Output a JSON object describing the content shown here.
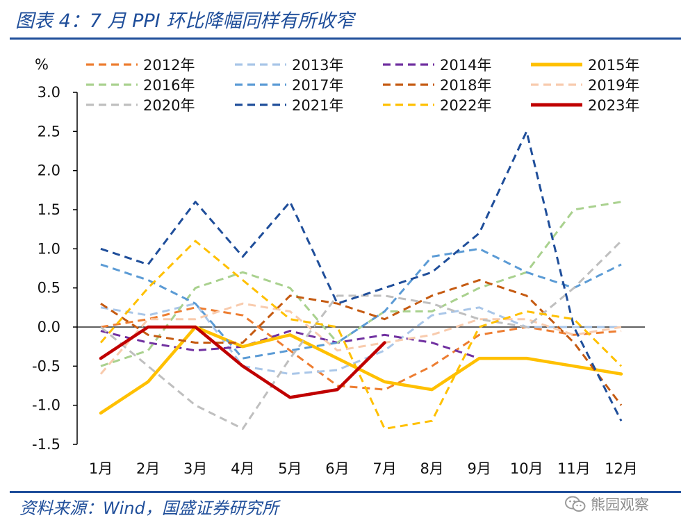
{
  "header": {
    "title": "图表 4：7 月 PPI 环比降幅同样有所收窄"
  },
  "footer": {
    "source": "资料来源：Wind，国盛证券研究所",
    "watermark": "熊园观察",
    "watermark_icon": "wechat-icon"
  },
  "chart_data": {
    "type": "line",
    "ylabel": "%",
    "ylim": [
      -1.5,
      3.0
    ],
    "yticks": [
      -1.5,
      -1.0,
      -0.5,
      0.0,
      0.5,
      1.0,
      1.5,
      2.0,
      2.5,
      3.0
    ],
    "ytick_labels": [
      "-1.5",
      "-1.0",
      "-0.5",
      "0.0",
      "0.5",
      "1.0",
      "1.5",
      "2.0",
      "2.5",
      "3.0"
    ],
    "categories": [
      "1月",
      "2月",
      "3月",
      "4月",
      "5月",
      "6月",
      "7月",
      "8月",
      "9月",
      "10月",
      "11月",
      "12月"
    ],
    "grid": false,
    "zero_line": true,
    "legend": {
      "position": "top",
      "columns": 4
    },
    "series": [
      {
        "name": "2012年",
        "color": "#ed7d31",
        "dash": true,
        "values": [
          0.0,
          0.1,
          0.25,
          0.15,
          -0.3,
          -0.75,
          -0.8,
          -0.5,
          -0.1,
          0.0,
          -0.1,
          -0.05
        ]
      },
      {
        "name": "2013年",
        "color": "#a9c6e8",
        "dash": true,
        "values": [
          0.25,
          0.15,
          0.3,
          -0.5,
          -0.6,
          -0.55,
          -0.3,
          0.15,
          0.25,
          0.0,
          0.0,
          0.0
        ]
      },
      {
        "name": "2014年",
        "color": "#7030a0",
        "dash": true,
        "values": [
          -0.05,
          -0.2,
          -0.3,
          -0.25,
          -0.05,
          -0.2,
          -0.1,
          -0.2,
          -0.4,
          null,
          null,
          null
        ]
      },
      {
        "name": "2015年",
        "color": "#ffc000",
        "dash": false,
        "width": 4.5,
        "values": [
          -1.1,
          -0.7,
          0.0,
          -0.25,
          -0.1,
          -0.4,
          -0.7,
          -0.8,
          -0.4,
          -0.4,
          -0.5,
          -0.6
        ]
      },
      {
        "name": "2016年",
        "color": "#a9d18e",
        "dash": true,
        "values": [
          -0.5,
          -0.3,
          0.5,
          0.7,
          0.5,
          -0.2,
          0.2,
          0.2,
          0.5,
          0.7,
          1.5,
          1.6
        ]
      },
      {
        "name": "2017年",
        "color": "#5b9bd5",
        "dash": true,
        "values": [
          0.8,
          0.6,
          0.3,
          -0.4,
          -0.3,
          -0.2,
          0.2,
          0.9,
          1.0,
          0.7,
          0.5,
          0.8
        ]
      },
      {
        "name": "2018年",
        "color": "#c55a11",
        "dash": true,
        "values": [
          0.3,
          -0.1,
          -0.2,
          -0.2,
          0.4,
          0.3,
          0.1,
          0.4,
          0.6,
          0.4,
          -0.2,
          -1.0
        ]
      },
      {
        "name": "2019年",
        "color": "#f8cbad",
        "dash": true,
        "values": [
          -0.6,
          0.1,
          0.1,
          0.3,
          0.2,
          -0.3,
          -0.2,
          -0.1,
          0.1,
          0.1,
          -0.1,
          0.0
        ]
      },
      {
        "name": "2020年",
        "color": "#bfbfbf",
        "dash": true,
        "values": [
          0.0,
          -0.5,
          -1.0,
          -1.3,
          -0.4,
          0.4,
          0.4,
          0.3,
          0.1,
          0.0,
          0.5,
          1.1
        ]
      },
      {
        "name": "2021年",
        "color": "#1f4e9a",
        "dash": true,
        "values": [
          1.0,
          0.8,
          1.6,
          0.9,
          1.6,
          0.3,
          0.5,
          0.7,
          1.2,
          2.5,
          0.0,
          -1.2
        ]
      },
      {
        "name": "2022年",
        "color": "#ffc000",
        "dash": true,
        "values": [
          -0.2,
          0.5,
          1.1,
          0.6,
          0.1,
          0.0,
          -1.3,
          -1.2,
          0.0,
          0.2,
          0.1,
          -0.5
        ]
      },
      {
        "name": "2023年",
        "color": "#c00000",
        "dash": false,
        "width": 4.5,
        "values": [
          -0.4,
          0.0,
          0.0,
          -0.5,
          -0.9,
          -0.8,
          -0.2,
          null,
          null,
          null,
          null,
          null
        ]
      }
    ]
  }
}
